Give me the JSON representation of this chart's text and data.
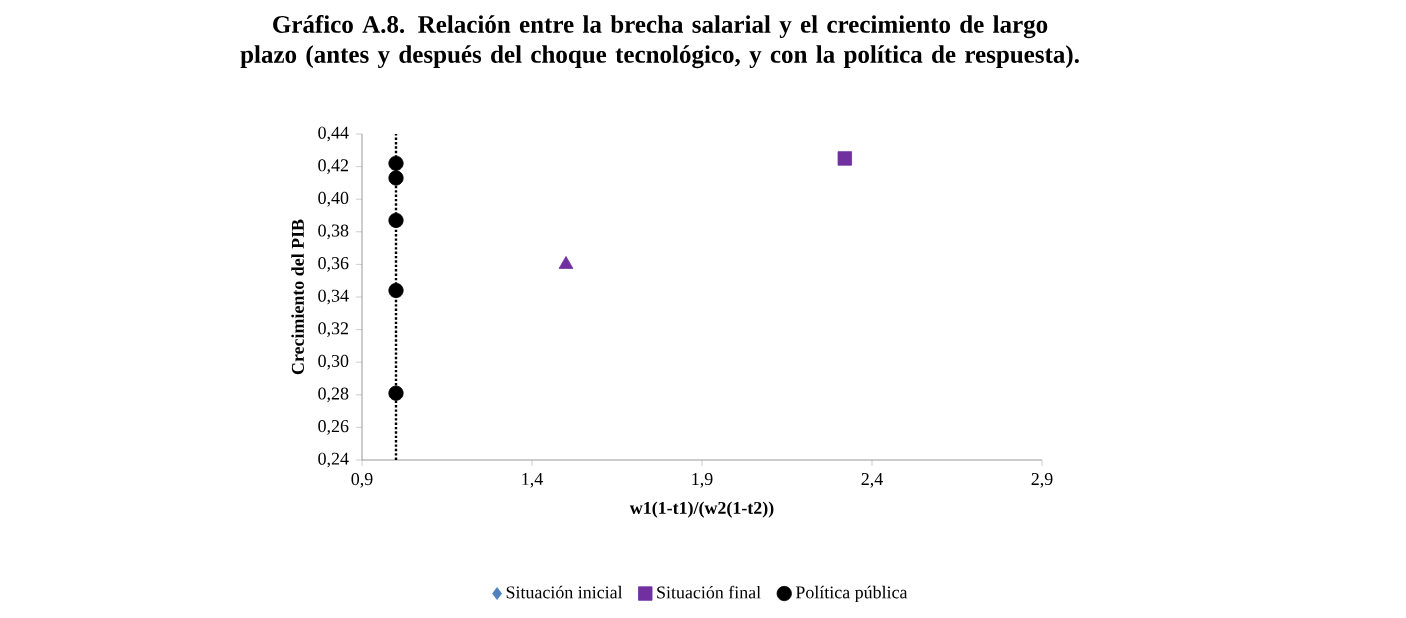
{
  "chart_data": {
    "type": "scatter",
    "title": "Gráfico A.8. Relación entre la brecha salarial y el crecimiento de largo plazo (antes y después del choque tecnológico, y con la política de respuesta).",
    "xlabel": "w1(1-t1)/(w2(1-t2))",
    "ylabel": "Crecimiento del PIB",
    "xlim": [
      0.9,
      2.9
    ],
    "xticks": [
      {
        "value": 0.9,
        "label": "0,9"
      },
      {
        "value": 1.4,
        "label": "1,4"
      },
      {
        "value": 1.9,
        "label": "1,9"
      },
      {
        "value": 2.4,
        "label": "2,4"
      },
      {
        "value": 2.9,
        "label": "2,9"
      }
    ],
    "ylim": [
      0.24,
      0.44
    ],
    "yticks": [
      {
        "value": 0.24,
        "label": "0,24"
      },
      {
        "value": 0.26,
        "label": "0,26"
      },
      {
        "value": 0.28,
        "label": "0,28"
      },
      {
        "value": 0.3,
        "label": "0,30"
      },
      {
        "value": 0.32,
        "label": "0,32"
      },
      {
        "value": 0.34,
        "label": "0,34"
      },
      {
        "value": 0.36,
        "label": "0,36"
      },
      {
        "value": 0.38,
        "label": "0,38"
      },
      {
        "value": 0.4,
        "label": "0,40"
      },
      {
        "value": 0.42,
        "label": "0,42"
      },
      {
        "value": 0.44,
        "label": "0,44"
      }
    ],
    "series": [
      {
        "name": "Situación inicial",
        "color": "#4f81bd",
        "marker": "diamond"
      },
      {
        "name": "Situación final",
        "color": "#7030a0",
        "marker": "square",
        "x": [
          2.32
        ],
        "values": [
          0.425
        ]
      },
      {
        "name": "Política pública",
        "color": "#000000",
        "marker": "circle",
        "x": [
          1.0,
          1.0,
          1.0,
          1.0,
          1.0
        ],
        "values": [
          0.422,
          0.413,
          0.387,
          0.344,
          0.281
        ]
      },
      {
        "color": "#7030a0",
        "marker": "triangle",
        "x": [
          1.5
        ],
        "values": [
          0.36
        ]
      }
    ],
    "ref_lines": [
      {
        "axis": "x",
        "value": 1.0,
        "color": "#000000",
        "line_style": "dotted"
      }
    ],
    "legend": "bottom",
    "grid": false
  }
}
